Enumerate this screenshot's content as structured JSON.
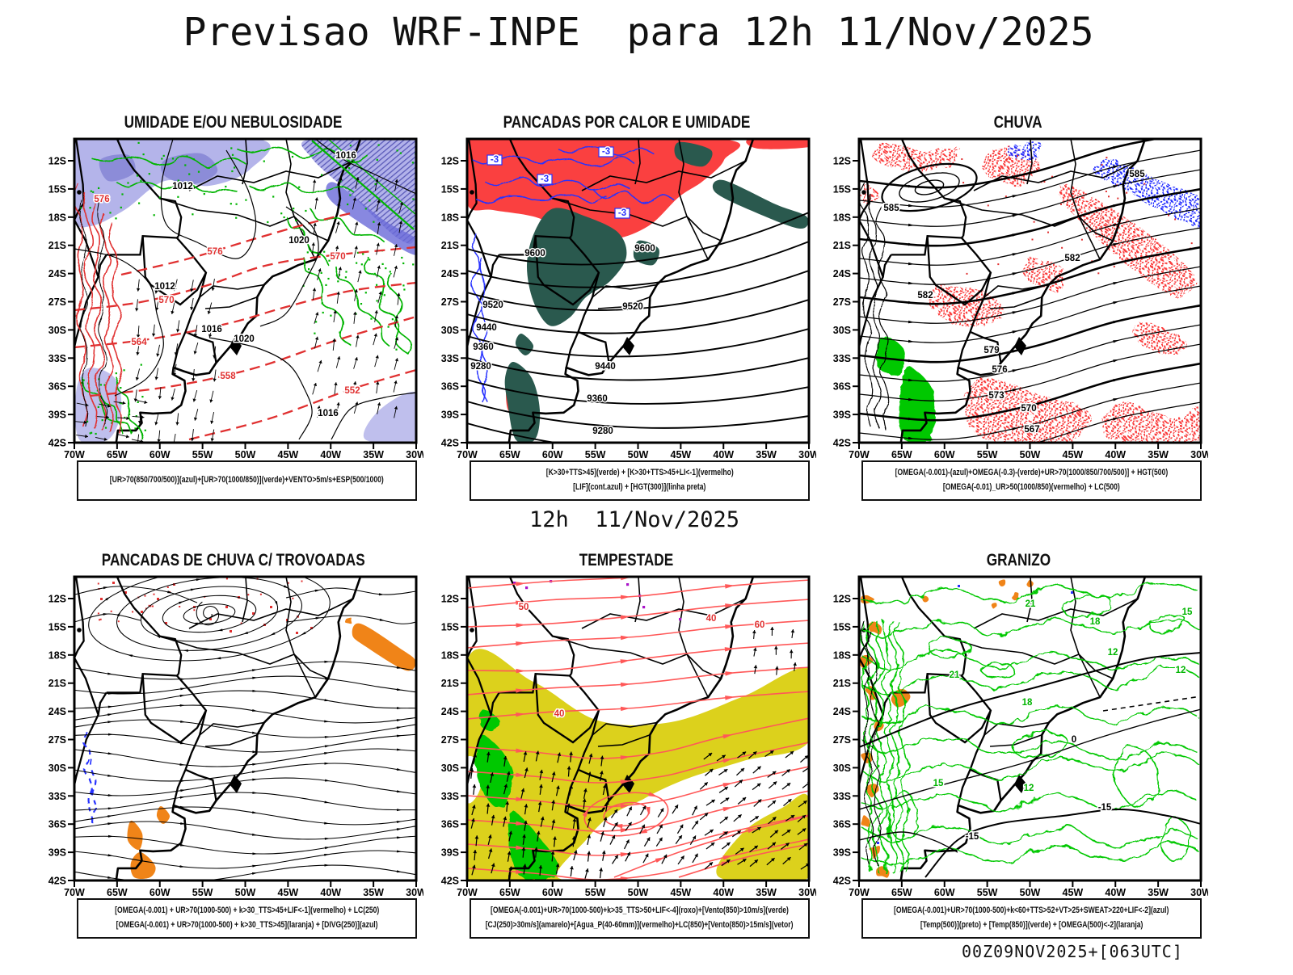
{
  "page": {
    "title": "Previsao WRF-INPE  para 12h 11/Nov/2025",
    "subtitle": "12h  11/Nov/2025",
    "footer": "00Z09NOV2025+[063UTC]"
  },
  "axes": {
    "lat": [
      "12S",
      "15S",
      "18S",
      "21S",
      "24S",
      "27S",
      "30S",
      "33S",
      "36S",
      "39S",
      "42S"
    ],
    "lon": [
      "70W",
      "65W",
      "60W",
      "55W",
      "50W",
      "45W",
      "40W",
      "35W",
      "30W"
    ]
  },
  "colors": {
    "red_fill": "#fa4040",
    "teal": "#2a594e",
    "lavender": "#b4b4ea",
    "lavender_dark": "#8c8cd8",
    "band_core": "#6a6ad8",
    "green": "#00b400",
    "bright_green": "#00c800",
    "yellow": "#dcd11c",
    "orange": "#f08418",
    "blue": "#2830ff",
    "red_contour": "#e03030",
    "salmon": "#ff5858",
    "purple": "#aa14c8"
  },
  "panels": [
    {
      "title": "UMIDADE E/OU NEBULOSIDADE",
      "legend_lines": [
        "[UR>70(850/700/500)](azul)+[UR>70(1000/850)](verde)+VENTO>5m/s+ESP(500/1000)"
      ],
      "labels": [
        "1016",
        "1012",
        "1012",
        "1016",
        "1020",
        "1020",
        "1016",
        "576",
        "576",
        "570",
        "564",
        "558",
        "552",
        "570"
      ]
    },
    {
      "title": "PANCADAS POR CALOR E UMIDADE",
      "legend_lines": [
        "[K>30+TTS>45](verde) + [K>30+TTS>45+LI<-1](vermelho)",
        "[LIF](cont.azul) + [HGT(300)](linha preta)"
      ],
      "labels": [
        "9600",
        "9600",
        "9520",
        "9520",
        "9440",
        "9440",
        "9360",
        "9360",
        "9280",
        "9280",
        "-3",
        "-3",
        "-3",
        "-3"
      ]
    },
    {
      "title": "CHUVA",
      "legend_lines": [
        "[OMEGA(-0.001)-(azul)+OMEGA(-0.3)-(verde)+UR>70(1000/850/700/500)] + HGT(500)",
        "[OMEGA(-0.01)_UR>50(1000/850)(vermelho) + LC(500)"
      ],
      "labels": [
        "585",
        "585",
        "582",
        "582",
        "579",
        "576",
        "573",
        "570",
        "567"
      ]
    },
    {
      "title": "PANCADAS DE CHUVA C/ TROVOADAS",
      "legend_lines": [
        "[OMEGA(-0.001) + UR>70(1000-500) + k>30_TTS>45+LIF<-1](vermelho) + LC(250)",
        "[OMEGA(-0.001) + UR>70(1000-500) + k>30_TTS>45](laranja) + [DIVG(250)](azul)"
      ],
      "labels": []
    },
    {
      "title": "TEMPESTADE",
      "legend_lines": [
        "[OMEGA(-0.001)+UR>70(1000-500)+k>35_TTS>50+LIF<-4](roxo)+[Vento(850)>10m/s](verde)",
        "[CJ(250)>30m/s](amarelo)+[Agua_P(40-60mm)](vermelho)+LC(850)+[Vento(850)>15m/s](vetor)"
      ],
      "labels": [
        "50",
        "40",
        "40",
        "60"
      ]
    },
    {
      "title": "GRANIZO",
      "legend_lines": [
        "[OMEGA(-0.001)+UR>70(1000-500)+k<60+TTS>52+VT>25+SWEAT>220+LIF<-2](azul)",
        "[Temp(500)](preto) + [Temp(850)](verde) + [OMEGA(500)<-2](laranja)"
      ],
      "labels": [
        "21",
        "21",
        "18",
        "18",
        "15",
        "15",
        "12",
        "12",
        "12",
        "-15",
        "-15",
        "0"
      ]
    }
  ]
}
